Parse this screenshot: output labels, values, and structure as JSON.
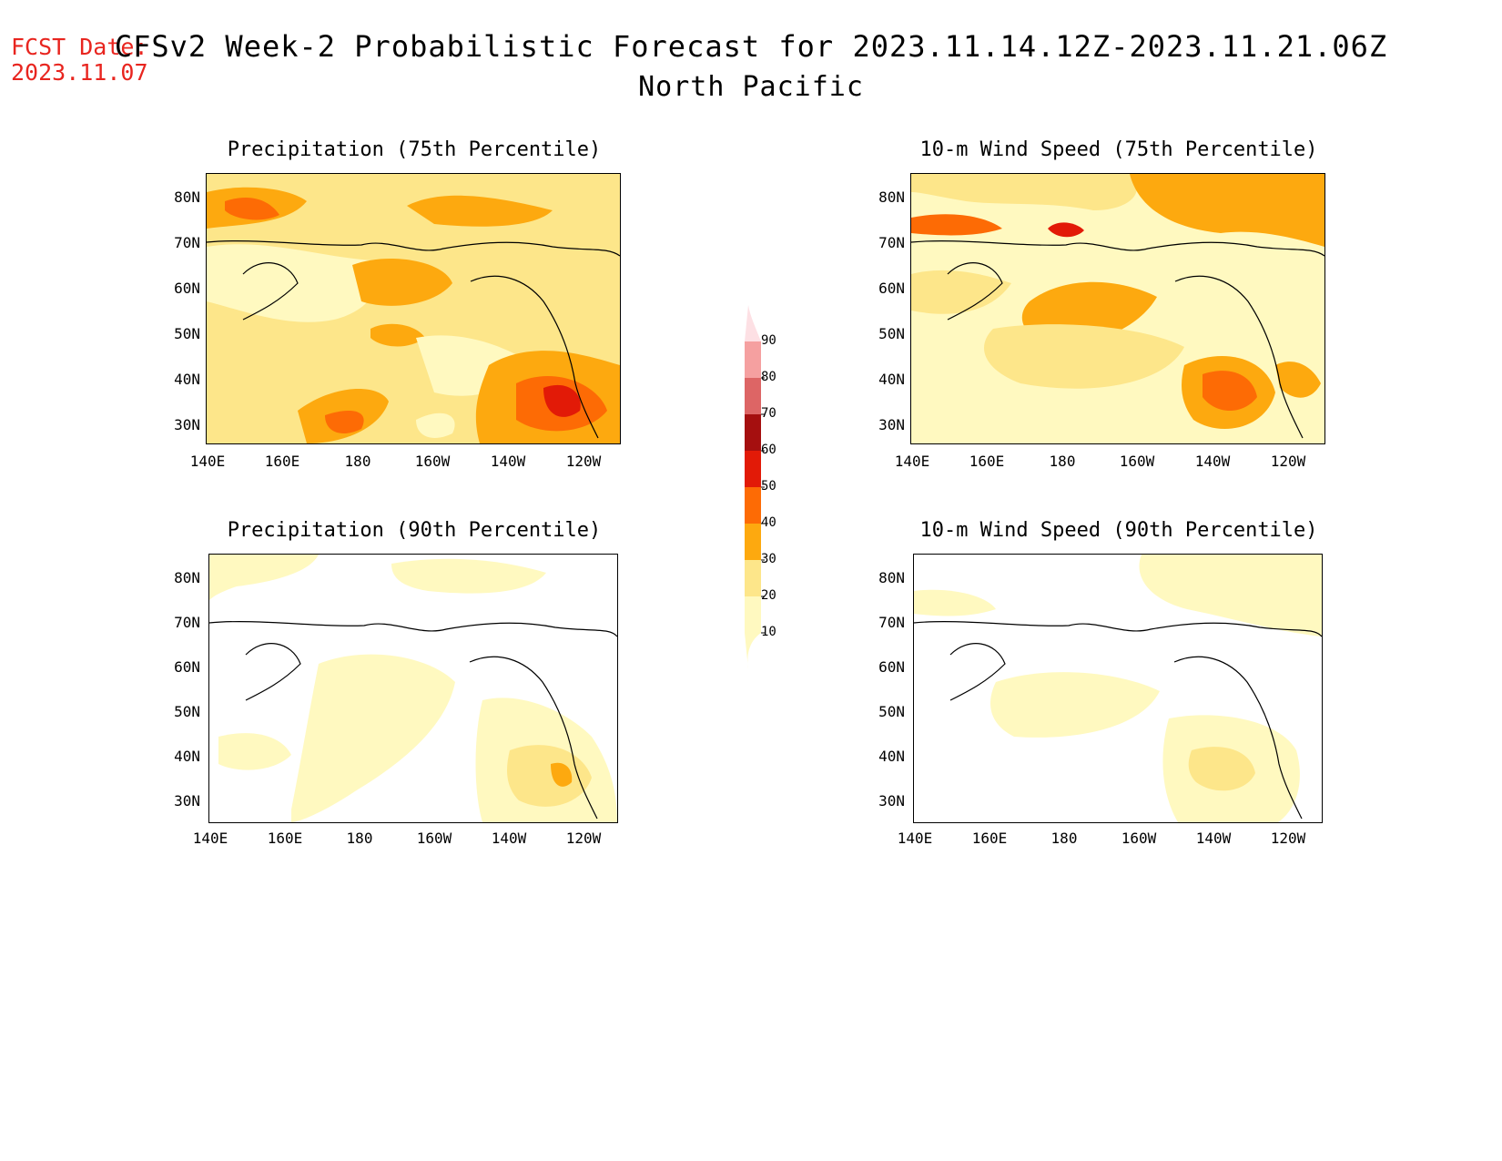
{
  "header": {
    "fcst_label": "FCST Date:",
    "fcst_date": "2023.11.07",
    "title": "CFSv2 Week-2 Probabilistic Forecast for 2023.11.14.12Z-2023.11.21.06Z",
    "region": "North Pacific"
  },
  "axes": {
    "lat_labels": [
      "80N",
      "70N",
      "60N",
      "50N",
      "40N",
      "30N"
    ],
    "lon_labels": [
      "140E",
      "160E",
      "180",
      "160W",
      "140W",
      "120W"
    ]
  },
  "panels": [
    {
      "id": "precip75",
      "title": "Precipitation (75th Percentile)"
    },
    {
      "id": "wind75",
      "title": "10-m Wind Speed (75th Percentile)"
    },
    {
      "id": "precip90",
      "title": "Precipitation (90th Percentile)"
    },
    {
      "id": "wind90",
      "title": "10-m Wind Speed (90th Percentile)"
    }
  ],
  "colorbar": {
    "levels": [
      "10",
      "20",
      "30",
      "40",
      "50",
      "60",
      "70",
      "80",
      "90"
    ],
    "colors": [
      "#fff9c0",
      "#fde68a",
      "#fda90f",
      "#fd6b05",
      "#e21a07",
      "#a50f0f",
      "#dd6565",
      "#f5a0a0",
      "#fde0e4"
    ]
  }
}
